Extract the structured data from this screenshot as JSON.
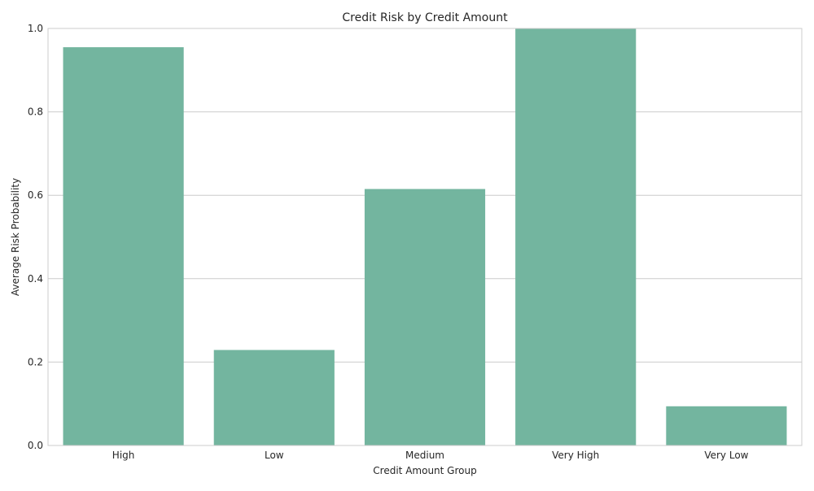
{
  "chart_data": {
    "type": "bar",
    "title": "Credit Risk by Credit Amount",
    "xlabel": "Credit Amount Group",
    "ylabel": "Average Risk Probability",
    "categories": [
      "High",
      "Low",
      "Medium",
      "Very High",
      "Very Low"
    ],
    "values": [
      0.955,
      0.229,
      0.615,
      1.0,
      0.094
    ],
    "ylim": [
      0,
      1.0
    ],
    "yticks": [
      0.0,
      0.2,
      0.4,
      0.6,
      0.8,
      1.0
    ],
    "ytick_labels": [
      "0.0",
      "0.2",
      "0.4",
      "0.6",
      "0.8",
      "1.0"
    ],
    "grid": true,
    "legend": "none",
    "colors": {
      "bar": "#73b59f",
      "grid": "#cccccc",
      "axes": "#cccccc",
      "text": "#262626",
      "background": "#ffffff"
    }
  }
}
